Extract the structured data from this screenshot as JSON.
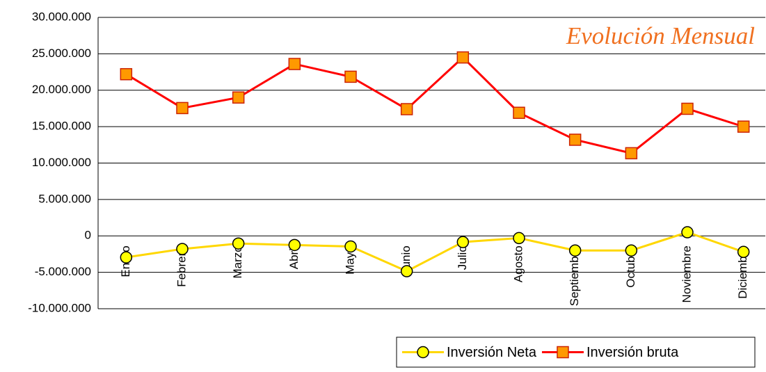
{
  "chart_data": {
    "type": "line",
    "title": "Evolución Mensual",
    "categories": [
      "Enero",
      "Febrero",
      "Marzo",
      "Abril",
      "Mayo",
      "Junio",
      "Julio",
      "Agosto",
      "Septiembre",
      "Octubre",
      "Noviembre",
      "Diciembre"
    ],
    "series": [
      {
        "name": "Inversión Neta",
        "color": "#ffd700",
        "marker": "circle",
        "marker_color": "#ffff00",
        "values": [
          -2950000,
          -1800000,
          -1050000,
          -1250000,
          -1450000,
          -4850000,
          -850000,
          -300000,
          -2000000,
          -2000000,
          500000,
          -2200000
        ]
      },
      {
        "name": "Inversión bruta",
        "color": "#ff0000",
        "marker": "square",
        "marker_color": "#ff9900",
        "values": [
          22200000,
          17550000,
          19000000,
          23600000,
          21850000,
          17400000,
          24500000,
          16900000,
          13200000,
          11350000,
          17450000,
          15000000
        ]
      }
    ],
    "ylim": [
      -10000000,
      30000000
    ],
    "yticks": [
      {
        "value": -10000000,
        "label": "-10.000.000"
      },
      {
        "value": -5000000,
        "label": "-5.000.000"
      },
      0,
      {
        "value": 5000000,
        "label": "5.000.000"
      },
      {
        "value": 10000000,
        "label": "10.000.000"
      },
      {
        "value": 15000000,
        "label": "15.000.000"
      },
      {
        "value": 20000000,
        "label": "20.000.000"
      },
      {
        "value": 25000000,
        "label": "25.000.000"
      },
      {
        "value": 30000000,
        "label": "30.000.000"
      }
    ],
    "grid": true,
    "legend": "bottom-right"
  }
}
